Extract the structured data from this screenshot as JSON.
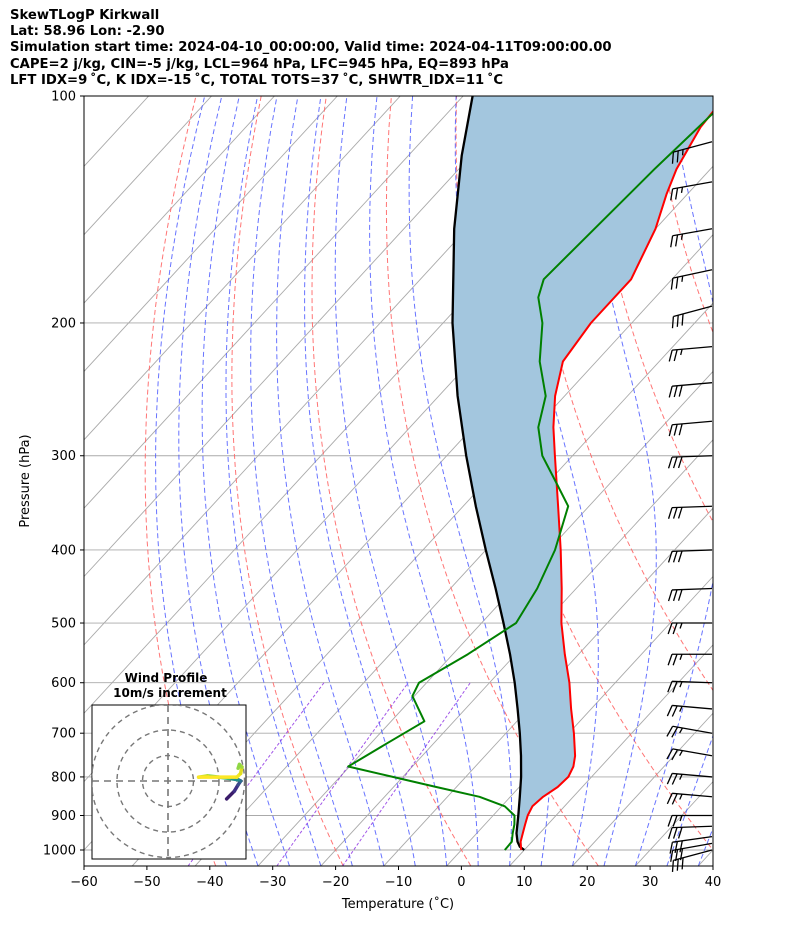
{
  "header": {
    "line1": "SkewTLogP Kirkwall",
    "line2": "Lat: 58.96   Lon: -2.90",
    "line3": "Simulation start time: 2024-04-10_00:00:00, Valid time: 2024-04-11T09:00:00.00",
    "line4": "CAPE=2 j/kg, CIN=-5 j/kg, LCL=964 hPa, LFC=945 hPa, EQ=893 hPa",
    "line5": "LFT IDX=9 ˚C, K IDX=-15 ˚C, TOTAL TOTS=37 ˚C, SHWTR_IDX=11 ˚C"
  },
  "chart_data": {
    "type": "skewt",
    "xlabel": "Temperature (˚C)",
    "ylabel": "Pressure (hPa)",
    "xlim": [
      -60,
      40
    ],
    "ylim": [
      1050,
      100
    ],
    "x_ticks": [
      -60,
      -50,
      -40,
      -30,
      -20,
      -10,
      0,
      10,
      20,
      30,
      40
    ],
    "x_tick_labels": [
      "−60",
      "−50",
      "−40",
      "−30",
      "−20",
      "−10",
      "0",
      "10",
      "20",
      "30",
      "40"
    ],
    "y_ticks": [
      100,
      200,
      300,
      400,
      500,
      600,
      700,
      800,
      900,
      1000
    ],
    "y_tick_labels": [
      "100",
      "200",
      "300",
      "400",
      "500",
      "600",
      "700",
      "800",
      "900",
      "1000"
    ],
    "grid": true,
    "colors": {
      "temperature": "#ff0000",
      "dewpoint": "#008000",
      "parcel": "#000000",
      "cape_fill": "#a3c6de",
      "dry_adiabat": "#ff6666",
      "moist_adiabat": "#4d5cff",
      "mixing_ratio": "#8a2be2",
      "isotherm": "#aaaaaa"
    },
    "temperature_profile": [
      {
        "p": 1000,
        "t": 9.5
      },
      {
        "p": 975,
        "t": 8.2
      },
      {
        "p": 950,
        "t": 7.3
      },
      {
        "p": 925,
        "t": 6.4
      },
      {
        "p": 900,
        "t": 5.5
      },
      {
        "p": 875,
        "t": 4.9
      },
      {
        "p": 850,
        "t": 5.2
      },
      {
        "p": 825,
        "t": 6.1
      },
      {
        "p": 800,
        "t": 6.3
      },
      {
        "p": 775,
        "t": 5.6
      },
      {
        "p": 750,
        "t": 4.3
      },
      {
        "p": 700,
        "t": 0.8
      },
      {
        "p": 650,
        "t": -3.2
      },
      {
        "p": 600,
        "t": -7.3
      },
      {
        "p": 550,
        "t": -12.2
      },
      {
        "p": 500,
        "t": -17.3
      },
      {
        "p": 450,
        "t": -22.3
      },
      {
        "p": 400,
        "t": -28.1
      },
      {
        "p": 350,
        "t": -34.9
      },
      {
        "p": 300,
        "t": -42.8
      },
      {
        "p": 275,
        "t": -47.2
      },
      {
        "p": 250,
        "t": -51.5
      },
      {
        "p": 225,
        "t": -55.3
      },
      {
        "p": 200,
        "t": -56.5
      },
      {
        "p": 175,
        "t": -56.5
      },
      {
        "p": 150,
        "t": -60.0
      },
      {
        "p": 135,
        "t": -63.3
      },
      {
        "p": 125,
        "t": -65.4
      },
      {
        "p": 110,
        "t": -67.7
      },
      {
        "p": 100,
        "t": -68.3
      }
    ],
    "dewpoint_profile": [
      {
        "p": 1000,
        "t": 6.9
      },
      {
        "p": 975,
        "t": 6.8
      },
      {
        "p": 950,
        "t": 5.7
      },
      {
        "p": 925,
        "t": 4.7
      },
      {
        "p": 900,
        "t": 3.4
      },
      {
        "p": 875,
        "t": 0.5
      },
      {
        "p": 850,
        "t": -4.9
      },
      {
        "p": 825,
        "t": -13.2
      },
      {
        "p": 800,
        "t": -21.6
      },
      {
        "p": 775,
        "t": -30.2
      },
      {
        "p": 725,
        "t": -27.6
      },
      {
        "p": 675,
        "t": -24.7
      },
      {
        "p": 625,
        "t": -30.3
      },
      {
        "p": 600,
        "t": -31.2
      },
      {
        "p": 550,
        "t": -27.6
      },
      {
        "p": 500,
        "t": -24.5
      },
      {
        "p": 450,
        "t": -26.2
      },
      {
        "p": 400,
        "t": -29.0
      },
      {
        "p": 350,
        "t": -33.3
      },
      {
        "p": 325,
        "t": -38.8
      },
      {
        "p": 300,
        "t": -44.8
      },
      {
        "p": 275,
        "t": -49.6
      },
      {
        "p": 250,
        "t": -53.0
      },
      {
        "p": 225,
        "t": -59.0
      },
      {
        "p": 200,
        "t": -64.2
      },
      {
        "p": 185,
        "t": -68.6
      },
      {
        "p": 175,
        "t": -70.4
      },
      {
        "p": 160,
        "t": -70.0
      },
      {
        "p": 125,
        "t": -68.9
      },
      {
        "p": 100,
        "t": -67.4
      }
    ],
    "parcel_profile": [
      {
        "p": 1000,
        "t": 10.0
      },
      {
        "p": 990,
        "t": 8.8
      },
      {
        "p": 975,
        "t": 7.7
      },
      {
        "p": 950,
        "t": 6.3
      },
      {
        "p": 900,
        "t": 4.0
      },
      {
        "p": 850,
        "t": 1.5
      },
      {
        "p": 800,
        "t": -1.2
      },
      {
        "p": 750,
        "t": -4.3
      },
      {
        "p": 700,
        "t": -7.8
      },
      {
        "p": 650,
        "t": -11.7
      },
      {
        "p": 600,
        "t": -16.0
      },
      {
        "p": 550,
        "t": -20.9
      },
      {
        "p": 500,
        "t": -26.5
      },
      {
        "p": 450,
        "t": -32.8
      },
      {
        "p": 400,
        "t": -40.0
      },
      {
        "p": 350,
        "t": -48.0
      },
      {
        "p": 300,
        "t": -56.9
      },
      {
        "p": 250,
        "t": -67.0
      },
      {
        "p": 200,
        "t": -78.5
      },
      {
        "p": 150,
        "t": -92.0
      },
      {
        "p": 120,
        "t": -101.5
      },
      {
        "p": 100,
        "t": -108.5
      }
    ],
    "wind_barbs": [
      {
        "p": 1000,
        "speed": 30,
        "dir": 255
      },
      {
        "p": 980,
        "speed": 30,
        "dir": 260
      },
      {
        "p": 960,
        "speed": 30,
        "dir": 262
      },
      {
        "p": 930,
        "speed": 30,
        "dir": 268
      },
      {
        "p": 900,
        "speed": 25,
        "dir": 270
      },
      {
        "p": 850,
        "speed": 25,
        "dir": 275
      },
      {
        "p": 800,
        "speed": 25,
        "dir": 275
      },
      {
        "p": 750,
        "speed": 25,
        "dir": 280
      },
      {
        "p": 700,
        "speed": 25,
        "dir": 280
      },
      {
        "p": 650,
        "speed": 25,
        "dir": 275
      },
      {
        "p": 600,
        "speed": 25,
        "dir": 272
      },
      {
        "p": 550,
        "speed": 25,
        "dir": 270
      },
      {
        "p": 500,
        "speed": 25,
        "dir": 270
      },
      {
        "p": 450,
        "speed": 30,
        "dir": 268
      },
      {
        "p": 400,
        "speed": 30,
        "dir": 268
      },
      {
        "p": 350,
        "speed": 30,
        "dir": 268
      },
      {
        "p": 300,
        "speed": 30,
        "dir": 268
      },
      {
        "p": 270,
        "speed": 30,
        "dir": 265
      },
      {
        "p": 240,
        "speed": 30,
        "dir": 265
      },
      {
        "p": 215,
        "speed": 25,
        "dir": 265
      },
      {
        "p": 190,
        "speed": 30,
        "dir": 255
      },
      {
        "p": 170,
        "speed": 25,
        "dir": 258
      },
      {
        "p": 150,
        "speed": 25,
        "dir": 260
      },
      {
        "p": 130,
        "speed": 25,
        "dir": 260
      },
      {
        "p": 115,
        "speed": 25,
        "dir": 255
      }
    ],
    "hodograph": {
      "title_line1": "Wind Profile",
      "title_line2": "10m/s increment",
      "rings": [
        10,
        20,
        30
      ],
      "points": [
        {
          "u": 23.0,
          "v": -7.0
        },
        {
          "u": 26.0,
          "v": -4.0
        },
        {
          "u": 27.5,
          "v": -1.5
        },
        {
          "u": 28.5,
          "v": 0.0
        },
        {
          "u": 27.5,
          "v": 0.5
        },
        {
          "u": 24.0,
          "v": 1.0
        },
        {
          "u": 20.0,
          "v": 1.5
        },
        {
          "u": 15.5,
          "v": 2.0
        },
        {
          "u": 12.0,
          "v": 1.5
        },
        {
          "u": 27.0,
          "v": 1.5
        },
        {
          "u": 28.5,
          "v": 3.0
        },
        {
          "u": 29.0,
          "v": 5.5
        },
        {
          "u": 28.0,
          "v": 6.5
        },
        {
          "u": 27.5,
          "v": 5.0
        }
      ]
    }
  }
}
